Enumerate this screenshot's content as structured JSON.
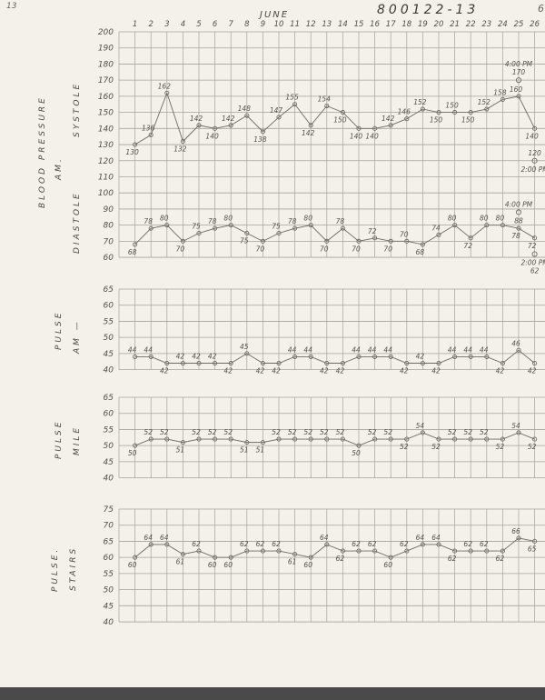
{
  "header": {
    "corner_left": "13",
    "doc_id": "800122-13",
    "corner_right": "6",
    "month": "JUNE"
  },
  "chart_data": [
    {
      "id": "blood_pressure_am",
      "type": "line",
      "title": "BLOOD PRESSURE AM.",
      "left_labels": [
        "BLOOD  PRESSURE",
        "AM."
      ],
      "x_labels": [
        "1",
        "2",
        "3",
        "4",
        "5",
        "6",
        "7",
        "8",
        "9",
        "10",
        "11",
        "12",
        "13",
        "14",
        "15",
        "16",
        "17",
        "18",
        "19",
        "20",
        "21",
        "22",
        "23",
        "24",
        "25",
        "26"
      ],
      "ylim": [
        60,
        200
      ],
      "yticks": [
        200,
        190,
        180,
        170,
        160,
        150,
        140,
        130,
        120,
        110,
        100,
        90,
        80,
        70,
        60
      ],
      "grid": true,
      "series": [
        {
          "name": "SYSTOLE",
          "values": [
            130,
            136,
            162,
            132,
            142,
            140,
            142,
            148,
            138,
            147,
            155,
            142,
            154,
            150,
            140,
            140,
            142,
            146,
            152,
            150,
            150,
            150,
            152,
            158,
            160,
            140
          ]
        },
        {
          "name": "DIASTOLE",
          "values": [
            68,
            78,
            80,
            70,
            75,
            78,
            80,
            75,
            70,
            75,
            78,
            80,
            70,
            78,
            70,
            72,
            70,
            70,
            68,
            74,
            80,
            72,
            80,
            80,
            78,
            72
          ]
        }
      ],
      "annotations": [
        {
          "day": 25,
          "value": 170,
          "above": [
            "4:00 PM",
            "170"
          ],
          "below": []
        },
        {
          "day": 26,
          "value": 120,
          "above": [
            "120"
          ],
          "below": [
            "2:00 PM"
          ]
        },
        {
          "day": 25,
          "value": 88,
          "above": [
            "4:00 PM"
          ],
          "below": [
            "88"
          ]
        },
        {
          "day": 26,
          "value": 62,
          "above": [],
          "below": [
            "2:00 PM",
            "62"
          ]
        }
      ]
    },
    {
      "id": "pulse_am",
      "type": "line",
      "title": "PULSE AM",
      "left_labels": [
        "PULSE",
        "AM —"
      ],
      "ylim": [
        40,
        65
      ],
      "yticks": [
        65,
        60,
        55,
        50,
        45,
        40
      ],
      "grid": true,
      "series": [
        {
          "name": "AM",
          "values": [
            44,
            44,
            42,
            42,
            42,
            42,
            42,
            45,
            42,
            42,
            44,
            44,
            42,
            42,
            44,
            44,
            44,
            42,
            42,
            42,
            44,
            44,
            44,
            42,
            46,
            42
          ]
        }
      ],
      "annotations": []
    },
    {
      "id": "pulse_mile",
      "type": "line",
      "title": "PULSE MILE",
      "left_labels": [
        "PULSE",
        "MILE"
      ],
      "ylim": [
        40,
        65
      ],
      "yticks": [
        65,
        60,
        55,
        50,
        45,
        40
      ],
      "grid": true,
      "series": [
        {
          "name": "MILE",
          "values": [
            50,
            52,
            52,
            51,
            52,
            52,
            52,
            51,
            51,
            52,
            52,
            52,
            52,
            52,
            50,
            52,
            52,
            52,
            54,
            52,
            52,
            52,
            52,
            52,
            54,
            52
          ]
        }
      ],
      "annotations": []
    },
    {
      "id": "pulse_stairs",
      "type": "line",
      "title": "PULSE STAIRS",
      "left_labels": [
        "PULSE.",
        "STAIRS"
      ],
      "ylim": [
        40,
        75
      ],
      "yticks": [
        75,
        70,
        65,
        60,
        55,
        50,
        45,
        40
      ],
      "grid": true,
      "series": [
        {
          "name": "STAIRS",
          "values": [
            60,
            64,
            64,
            61,
            62,
            60,
            60,
            62,
            62,
            62,
            61,
            60,
            64,
            62,
            62,
            62,
            60,
            62,
            64,
            64,
            62,
            62,
            62,
            62,
            66,
            65
          ]
        }
      ],
      "annotations": []
    }
  ]
}
